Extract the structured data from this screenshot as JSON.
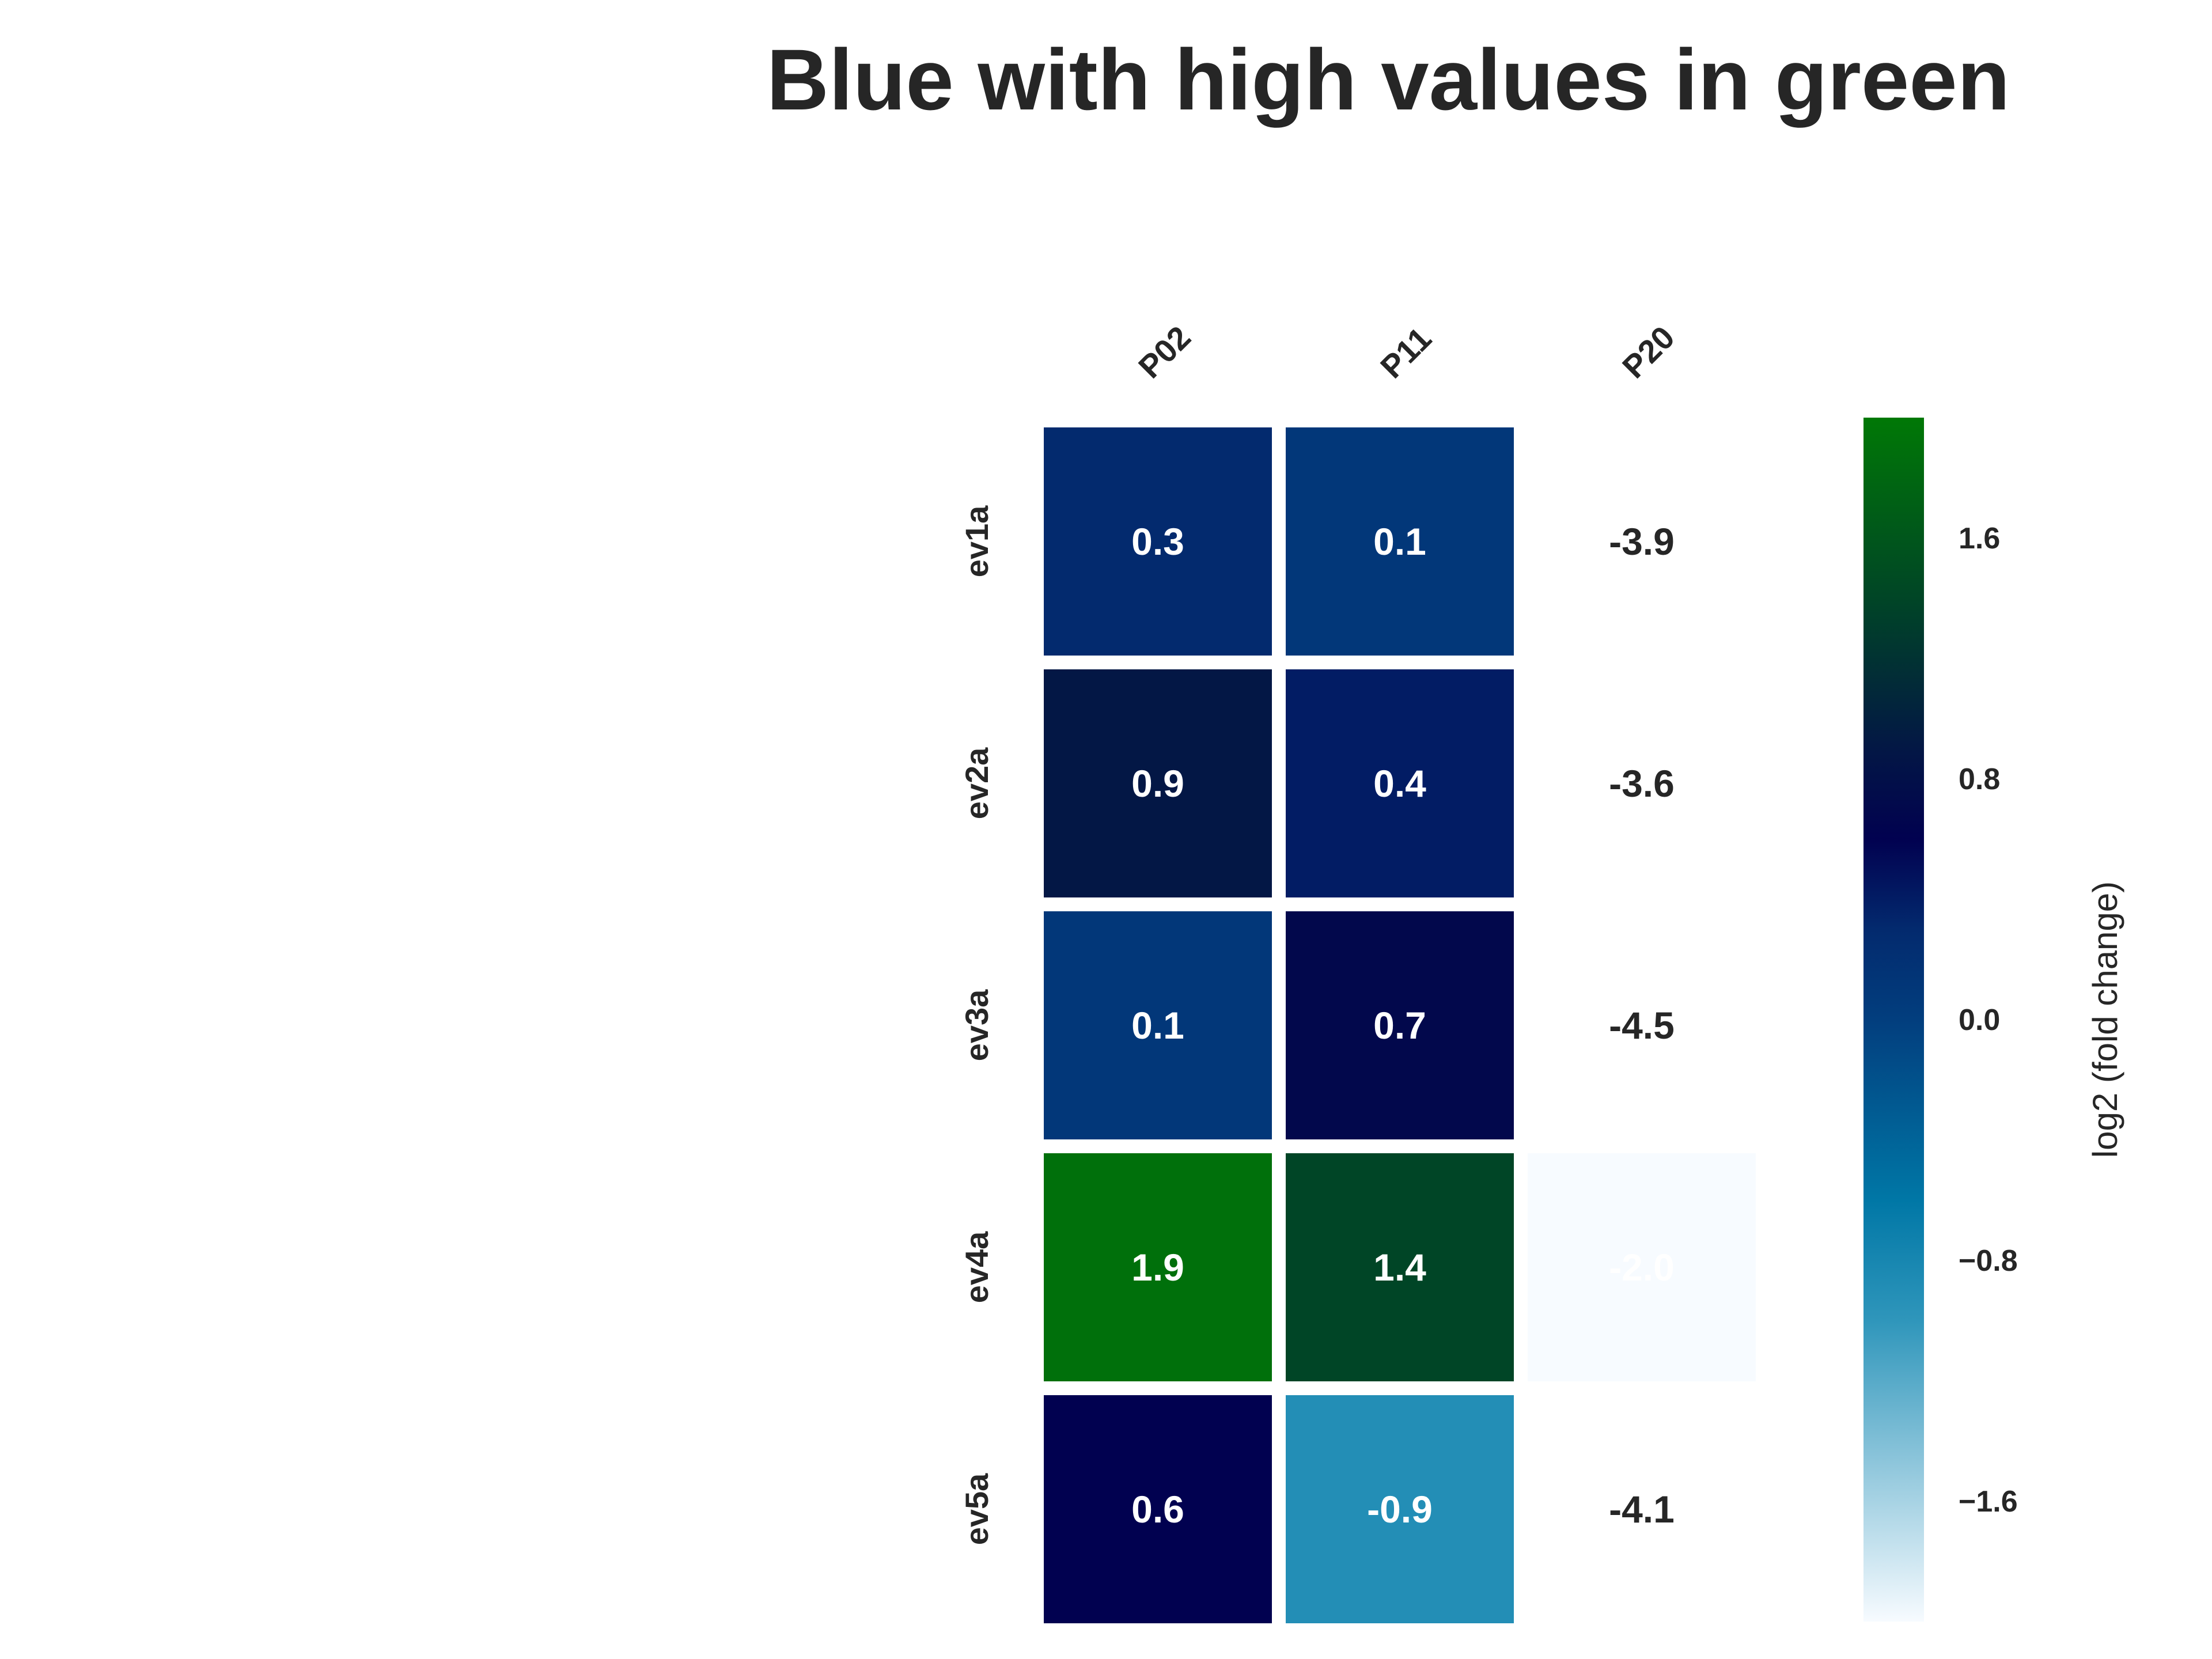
{
  "chart_data": {
    "type": "heatmap",
    "title": "Blue with high values in green",
    "columns": [
      "P02",
      "P11",
      "P20"
    ],
    "rows": [
      "ev1a",
      "ev2a",
      "ev3a",
      "ev4a",
      "ev5a"
    ],
    "values": [
      [
        0.3,
        0.1,
        -3.9
      ],
      [
        0.9,
        0.4,
        -3.6
      ],
      [
        0.1,
        0.7,
        -4.5
      ],
      [
        1.9,
        1.4,
        -2.0
      ],
      [
        0.6,
        -0.9,
        -4.1
      ]
    ],
    "value_labels": [
      [
        "0.3",
        "0.1",
        "-3.9"
      ],
      [
        "0.9",
        "0.4",
        "-3.6"
      ],
      [
        "0.1",
        "0.7",
        "-4.5"
      ],
      [
        "1.9",
        "1.4",
        "-2.0"
      ],
      [
        "0.6",
        "-0.9",
        "-4.1"
      ]
    ],
    "colorbar": {
      "label": "log2 (fold change)",
      "range": [
        -2.0,
        2.0
      ],
      "ticks": [
        1.6,
        0.8,
        0.0,
        -0.8,
        -1.6
      ],
      "tick_labels": [
        "1.6",
        "0.8",
        "0.0",
        "−0.8",
        "−1.6"
      ]
    },
    "colors": {
      "scale": [
        [
          -2.0,
          "#f7fbff"
        ],
        [
          -1.0,
          "#2f96bb"
        ],
        [
          -0.6,
          "#0077a6"
        ],
        [
          0.0,
          "#023e7e"
        ],
        [
          0.3,
          "#032a6e"
        ],
        [
          0.6,
          "#010150"
        ],
        [
          0.9,
          "#031745"
        ],
        [
          1.4,
          "#004526"
        ],
        [
          2.0,
          "#007806"
        ]
      ],
      "masked_cells": "#ffffff",
      "light_text": "#ffffff",
      "dark_text": "#262626"
    }
  }
}
